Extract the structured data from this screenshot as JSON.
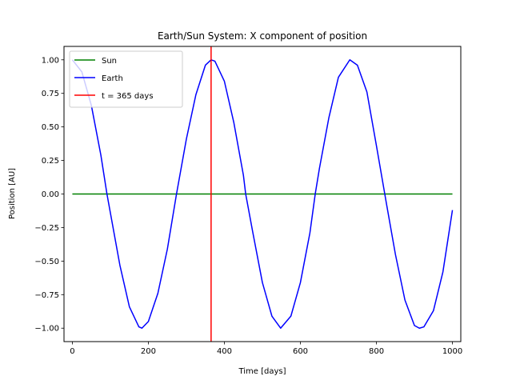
{
  "chart_data": {
    "type": "line",
    "title": "Earth/Sun System: X component of position",
    "xlabel": "Time [days]",
    "ylabel": "Position [AU]",
    "xlim": [
      -22,
      1022
    ],
    "ylim": [
      -1.1,
      1.1
    ],
    "x_ticks": [
      0,
      200,
      400,
      600,
      800,
      1000
    ],
    "x_tick_labels": [
      "0",
      "200",
      "400",
      "600",
      "800",
      "1000"
    ],
    "y_ticks": [
      -1.0,
      -0.75,
      -0.5,
      -0.25,
      0.0,
      0.25,
      0.5,
      0.75,
      1.0
    ],
    "y_tick_labels": [
      "−1.00",
      "−0.75",
      "−0.50",
      "−0.25",
      "0.00",
      "0.25",
      "0.50",
      "0.75",
      "1.00"
    ],
    "grid": false,
    "legend_position": "top-left",
    "series": [
      {
        "name": "Sun",
        "color": "#008000",
        "x": [
          0,
          1000
        ],
        "y": [
          0.0,
          0.0
        ]
      },
      {
        "name": "Earth",
        "color": "#0000ff",
        "x": [
          0,
          25,
          50,
          75,
          91,
          100,
          125,
          150,
          175,
          183,
          200,
          225,
          250,
          274,
          300,
          325,
          350,
          365,
          375,
          400,
          425,
          450,
          456,
          475,
          500,
          525,
          548,
          575,
          600,
          625,
          639,
          650,
          675,
          700,
          730,
          750,
          775,
          800,
          822,
          825,
          850,
          875,
          900,
          913,
          925,
          950,
          975,
          1000
        ],
        "y": [
          1.0,
          0.91,
          0.66,
          0.29,
          0.0,
          -0.14,
          -0.53,
          -0.84,
          -0.99,
          -1.0,
          -0.95,
          -0.74,
          -0.41,
          0.0,
          0.41,
          0.74,
          0.96,
          1.0,
          0.99,
          0.84,
          0.53,
          0.14,
          0.0,
          -0.29,
          -0.66,
          -0.91,
          -1.0,
          -0.91,
          -0.66,
          -0.29,
          0.0,
          0.19,
          0.57,
          0.87,
          1.0,
          0.96,
          0.76,
          0.36,
          0.0,
          -0.05,
          -0.45,
          -0.79,
          -0.98,
          -1.0,
          -0.99,
          -0.87,
          -0.58,
          -0.12
        ]
      },
      {
        "name": "t = 365 days",
        "color": "#ff0000",
        "x": [
          365,
          365
        ],
        "y": [
          -1.1,
          1.1
        ]
      }
    ]
  }
}
